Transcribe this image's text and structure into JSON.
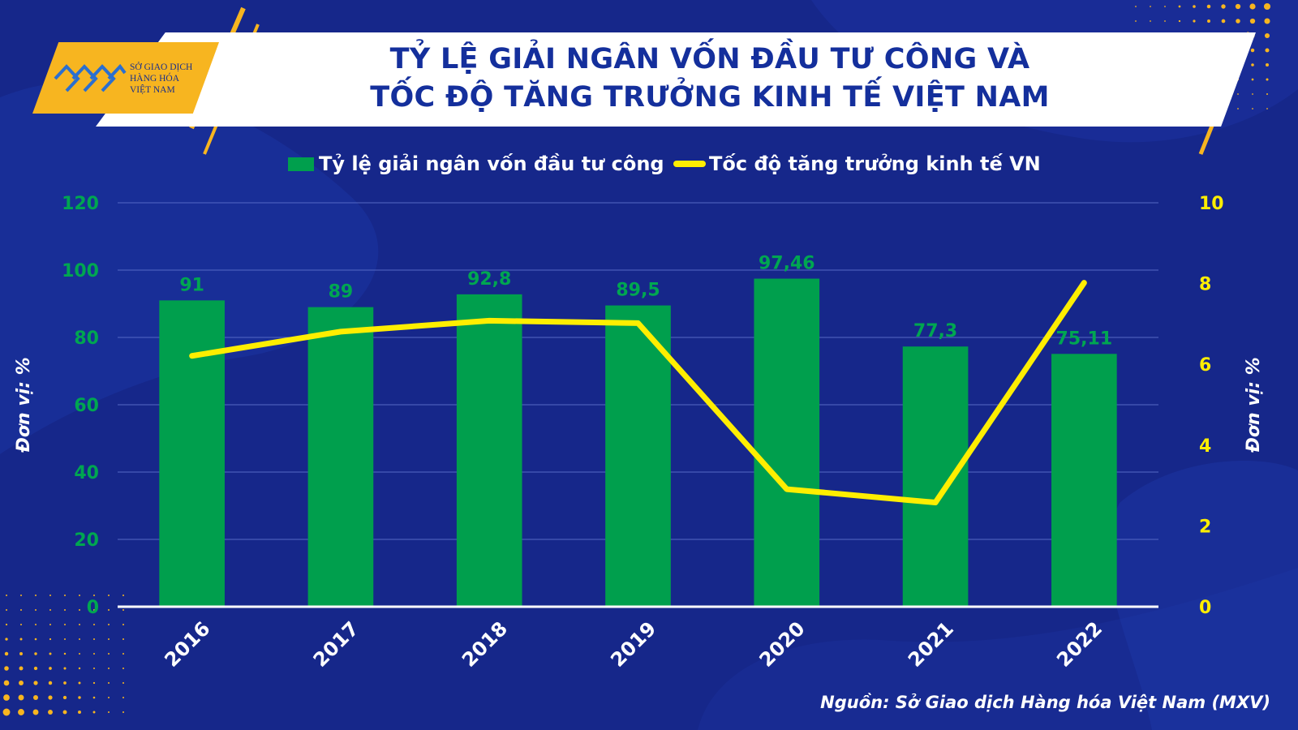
{
  "header": {
    "title_line1": "TỶ LỆ GIẢI NGÂN VỐN ĐẦU TƯ CÔNG VÀ",
    "title_line2": "TỐC ĐỘ TĂNG TRƯỞNG KINH TẾ VIỆT NAM"
  },
  "logo": {
    "line1": "SỞ GIAO DỊCH",
    "line2": "HÀNG HÓA",
    "line3": "VIỆT NAM"
  },
  "source": "Nguồn: Sở Giao dịch Hàng hóa Việt Nam (MXV)",
  "colors": {
    "background": "#16278a",
    "bar": "#009f4d",
    "line": "#ffee00",
    "left_axis": "#00a651",
    "right_axis": "#ffee00",
    "logo": "#f7b520"
  },
  "chart_data": {
    "type": "bar",
    "categories": [
      "2016",
      "2017",
      "2018",
      "2019",
      "2020",
      "2021",
      "2022"
    ],
    "series": [
      {
        "name": "Tỷ lệ giải ngân vốn đầu tư công",
        "type": "bar",
        "axis": "left",
        "values": [
          91,
          89,
          92.8,
          89.5,
          97.46,
          77.3,
          75.11
        ],
        "labels": [
          "91",
          "89",
          "92,8",
          "89,5",
          "97,46",
          "77,3",
          "75,11"
        ]
      },
      {
        "name": "Tốc độ tăng trưởng kinh tế VN",
        "type": "line",
        "axis": "right",
        "values": [
          6.21,
          6.81,
          7.08,
          7.02,
          2.91,
          2.58,
          8.02
        ]
      }
    ],
    "y_left": {
      "label": "Đơn vị: %",
      "range": [
        0,
        120
      ],
      "ticks": [
        "0",
        "20",
        "40",
        "60",
        "80",
        "100",
        "120"
      ]
    },
    "y_right": {
      "label": "Đơn vị: %",
      "range": [
        0,
        10
      ],
      "ticks": [
        "0",
        "2",
        "4",
        "6",
        "8",
        "10"
      ]
    },
    "grid": true,
    "legend_position": "top-center"
  }
}
